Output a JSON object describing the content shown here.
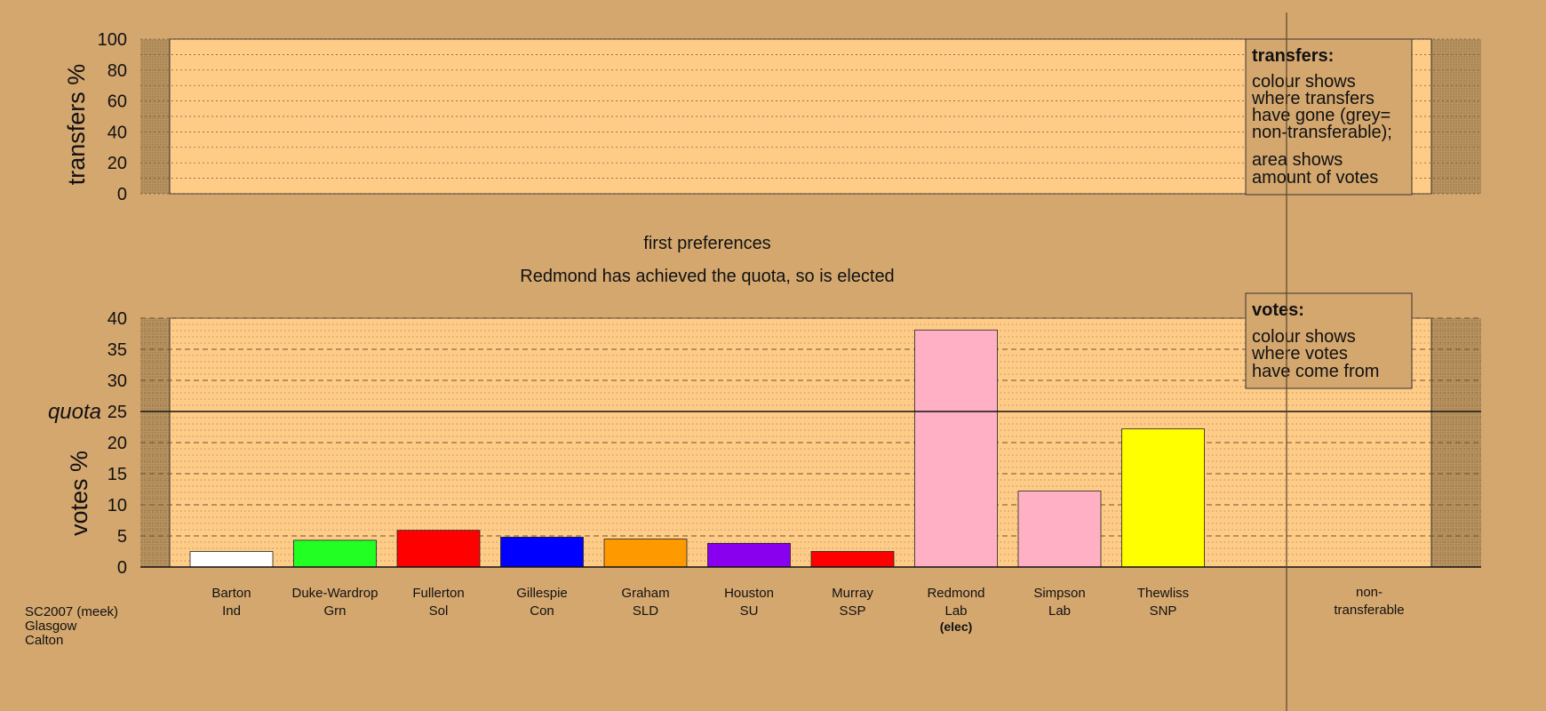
{
  "chart_data": {
    "type": "bar",
    "source": [
      "SC2007 (meek)",
      "Glasgow",
      "Calton"
    ],
    "stage_title": "first preferences",
    "stage_subtitle": "Redmond has achieved the quota, so is elected",
    "transfers_panel": {
      "ylabel": "transfers %",
      "ylim": [
        0,
        100
      ],
      "yticks": [
        0,
        20,
        40,
        60,
        80,
        100
      ],
      "legend": {
        "title": "transfers:",
        "lines": [
          "colour shows",
          "where transfers",
          "have gone (grey=",
          "non-transferable);"
        ],
        "lines2": [
          "area shows",
          "amount of votes"
        ]
      }
    },
    "votes_panel": {
      "ylabel": "votes %",
      "ylim": [
        0,
        40
      ],
      "yticks": [
        0,
        5,
        10,
        15,
        20,
        25,
        30,
        35,
        40
      ],
      "quota_label": "quota",
      "quota": 25,
      "legend": {
        "title": "votes:",
        "lines": [
          "colour shows",
          "where votes",
          "have come from"
        ]
      }
    },
    "candidates": [
      {
        "name": "Barton",
        "party": "Ind",
        "value": 2.5,
        "color": "#ffffff"
      },
      {
        "name": "Duke-Wardrop",
        "party": "Grn",
        "value": 4.3,
        "color": "#22ff22"
      },
      {
        "name": "Fullerton",
        "party": "Sol",
        "value": 5.9,
        "color": "#ff0000"
      },
      {
        "name": "Gillespie",
        "party": "Con",
        "value": 4.8,
        "color": "#0000ff"
      },
      {
        "name": "Graham",
        "party": "SLD",
        "value": 4.5,
        "color": "#ff9900"
      },
      {
        "name": "Houston",
        "party": "SU",
        "value": 3.8,
        "color": "#8800ee"
      },
      {
        "name": "Murray",
        "party": "SSP",
        "value": 2.5,
        "color": "#ff0000"
      },
      {
        "name": "Redmond",
        "party": "Lab",
        "value": 38.1,
        "color": "#ffb0c4",
        "status": "(elec)"
      },
      {
        "name": "Simpson",
        "party": "Lab",
        "value": 12.2,
        "color": "#ffb0c4"
      },
      {
        "name": "Thewliss",
        "party": "SNP",
        "value": 22.2,
        "color": "#ffff00"
      }
    ],
    "nontransferable_label": [
      "non-",
      "transferable"
    ],
    "colors": {
      "background": "#d4a76f",
      "plot_area": "#ffcc88",
      "side_area": "#c09a68"
    }
  }
}
